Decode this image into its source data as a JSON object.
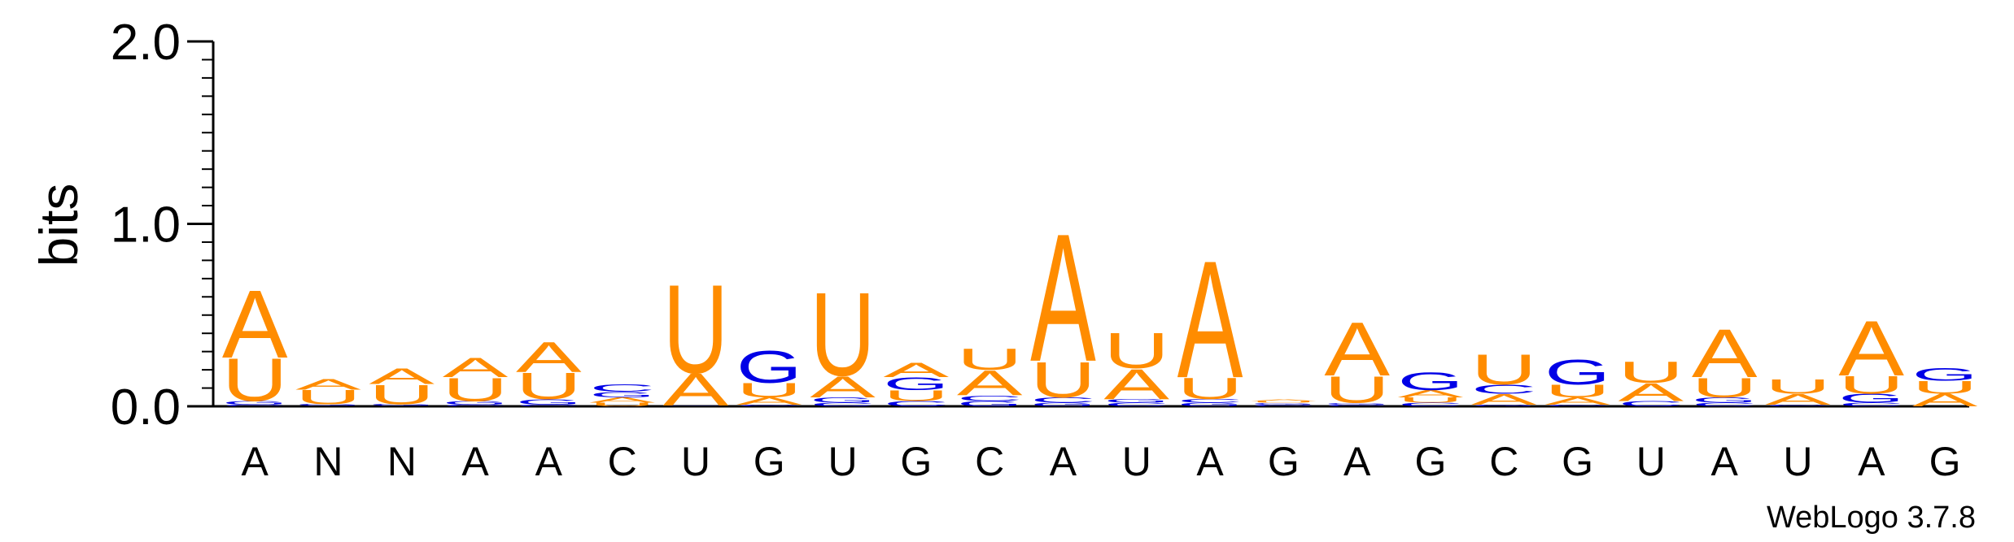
{
  "chart_data": {
    "type": "sequence-logo",
    "ylabel": "bits",
    "ylim": [
      0,
      2.0
    ],
    "yticks": [
      {
        "value": 0.0,
        "label": "0.0"
      },
      {
        "value": 1.0,
        "label": "1.0"
      },
      {
        "value": 2.0,
        "label": "2.0"
      }
    ],
    "x_tick_labels": [
      "A",
      "N",
      "N",
      "A",
      "A",
      "C",
      "U",
      "G",
      "U",
      "G",
      "C",
      "A",
      "U",
      "A",
      "G",
      "A",
      "G",
      "C",
      "G",
      "U",
      "A",
      "U",
      "A",
      "G"
    ],
    "colors": {
      "A": "#ff8c00",
      "U": "#ff8c00",
      "G": "#0000e6",
      "C": "#0000e6"
    },
    "footer": "WebLogo 3.7.8",
    "positions": [
      [
        {
          "l": "C",
          "h": 0.008
        },
        {
          "l": "G",
          "h": 0.02
        },
        {
          "l": "U",
          "h": 0.24
        },
        {
          "l": "A",
          "h": 0.38
        }
      ],
      [
        {
          "l": "C",
          "h": 0.004
        },
        {
          "l": "G",
          "h": 0.008
        },
        {
          "l": "U",
          "h": 0.08
        },
        {
          "l": "A",
          "h": 0.06
        }
      ],
      [
        {
          "l": "C",
          "h": 0.004
        },
        {
          "l": "G",
          "h": 0.008
        },
        {
          "l": "U",
          "h": 0.11
        },
        {
          "l": "A",
          "h": 0.09
        }
      ],
      [
        {
          "l": "C",
          "h": 0.01
        },
        {
          "l": "G",
          "h": 0.02
        },
        {
          "l": "U",
          "h": 0.13
        },
        {
          "l": "A",
          "h": 0.11
        }
      ],
      [
        {
          "l": "C",
          "h": 0.01
        },
        {
          "l": "G",
          "h": 0.03
        },
        {
          "l": "U",
          "h": 0.15
        },
        {
          "l": "A",
          "h": 0.17
        }
      ],
      [
        {
          "l": "U",
          "h": 0.02
        },
        {
          "l": "A",
          "h": 0.03
        },
        {
          "l": "G",
          "h": 0.03
        },
        {
          "l": "C",
          "h": 0.04
        }
      ],
      [
        {
          "l": "G",
          "h": 0.004
        },
        {
          "l": "A",
          "h": 0.18
        },
        {
          "l": "U",
          "h": 0.5
        }
      ],
      [
        {
          "l": "C",
          "h": 0.01
        },
        {
          "l": "A",
          "h": 0.04
        },
        {
          "l": "U",
          "h": 0.08
        },
        {
          "l": "G",
          "h": 0.18
        }
      ],
      [
        {
          "l": "C",
          "h": 0.02
        },
        {
          "l": "G",
          "h": 0.03
        },
        {
          "l": "A",
          "h": 0.12
        },
        {
          "l": "U",
          "h": 0.47
        }
      ],
      [
        {
          "l": "C",
          "h": 0.03
        },
        {
          "l": "U",
          "h": 0.06
        },
        {
          "l": "G",
          "h": 0.07
        },
        {
          "l": "A",
          "h": 0.08
        }
      ],
      [
        {
          "l": "G",
          "h": 0.03
        },
        {
          "l": "C",
          "h": 0.03
        },
        {
          "l": "A",
          "h": 0.14
        },
        {
          "l": "U",
          "h": 0.12
        }
      ],
      [
        {
          "l": "G",
          "h": 0.02
        },
        {
          "l": "C",
          "h": 0.03
        },
        {
          "l": "U",
          "h": 0.2
        },
        {
          "l": "A",
          "h": 0.72
        }
      ],
      [
        {
          "l": "C",
          "h": 0.02
        },
        {
          "l": "G",
          "h": 0.02
        },
        {
          "l": "A",
          "h": 0.17
        },
        {
          "l": "U",
          "h": 0.2
        }
      ],
      [
        {
          "l": "G",
          "h": 0.02
        },
        {
          "l": "C",
          "h": 0.02
        },
        {
          "l": "U",
          "h": 0.12
        },
        {
          "l": "A",
          "h": 0.66
        }
      ],
      [
        {
          "l": "C",
          "h": 0.01
        },
        {
          "l": "G",
          "h": 0.01
        },
        {
          "l": "U",
          "h": 0.01
        },
        {
          "l": "A",
          "h": 0.01
        }
      ],
      [
        {
          "l": "C",
          "h": 0.01
        },
        {
          "l": "G",
          "h": 0.01
        },
        {
          "l": "U",
          "h": 0.15
        },
        {
          "l": "A",
          "h": 0.3
        }
      ],
      [
        {
          "l": "C",
          "h": 0.02
        },
        {
          "l": "U",
          "h": 0.03
        },
        {
          "l": "A",
          "h": 0.04
        },
        {
          "l": "G",
          "h": 0.1
        }
      ],
      [
        {
          "l": "G",
          "h": 0.01
        },
        {
          "l": "A",
          "h": 0.06
        },
        {
          "l": "C",
          "h": 0.05
        },
        {
          "l": "U",
          "h": 0.17
        }
      ],
      [
        {
          "l": "C",
          "h": 0.01
        },
        {
          "l": "A",
          "h": 0.04
        },
        {
          "l": "U",
          "h": 0.07
        },
        {
          "l": "G",
          "h": 0.14
        }
      ],
      [
        {
          "l": "C",
          "h": 0.03
        },
        {
          "l": "A",
          "h": 0.1
        },
        {
          "l": "U",
          "h": 0.12
        }
      ],
      [
        {
          "l": "C",
          "h": 0.02
        },
        {
          "l": "G",
          "h": 0.03
        },
        {
          "l": "U",
          "h": 0.11
        },
        {
          "l": "A",
          "h": 0.27
        }
      ],
      [
        {
          "l": "C",
          "h": 0.01
        },
        {
          "l": "A",
          "h": 0.06
        },
        {
          "l": "U",
          "h": 0.08
        }
      ],
      [
        {
          "l": "C",
          "h": 0.02
        },
        {
          "l": "G",
          "h": 0.05
        },
        {
          "l": "U",
          "h": 0.1
        },
        {
          "l": "A",
          "h": 0.31
        }
      ],
      [
        {
          "l": "A",
          "h": 0.07
        },
        {
          "l": "U",
          "h": 0.07
        },
        {
          "l": "G",
          "h": 0.07
        }
      ]
    ]
  }
}
